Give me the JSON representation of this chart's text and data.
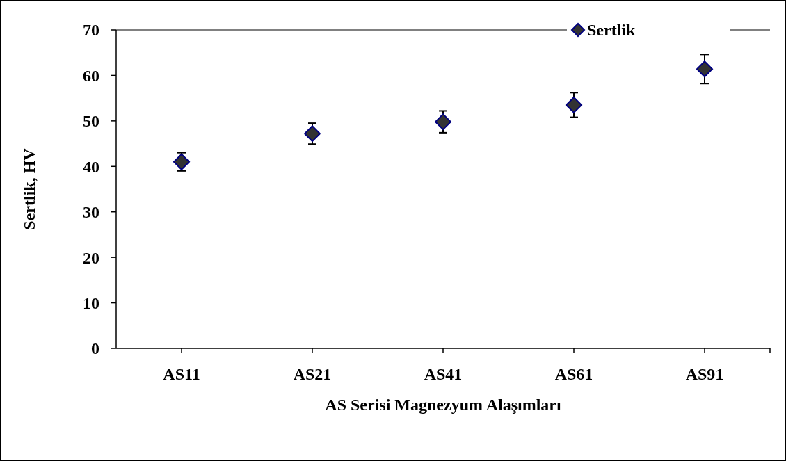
{
  "chart_data": {
    "type": "scatter",
    "xlabel": "AS Serisi Magnezyum Alaşımları",
    "ylabel": "Sertlik, HV",
    "categories": [
      "AS11",
      "AS21",
      "AS41",
      "AS61",
      "AS91"
    ],
    "series": [
      {
        "name": "Sertlik",
        "color": "#333333",
        "values": [
          41,
          47.2,
          49.8,
          53.5,
          61.4
        ],
        "errors": [
          2,
          2.3,
          2.4,
          2.7,
          3.2
        ]
      }
    ],
    "ylim": [
      0,
      70
    ],
    "yticks": [
      0,
      10,
      20,
      30,
      40,
      50,
      60,
      70
    ],
    "marker": "diamond",
    "legend": "top right",
    "grid": false
  }
}
